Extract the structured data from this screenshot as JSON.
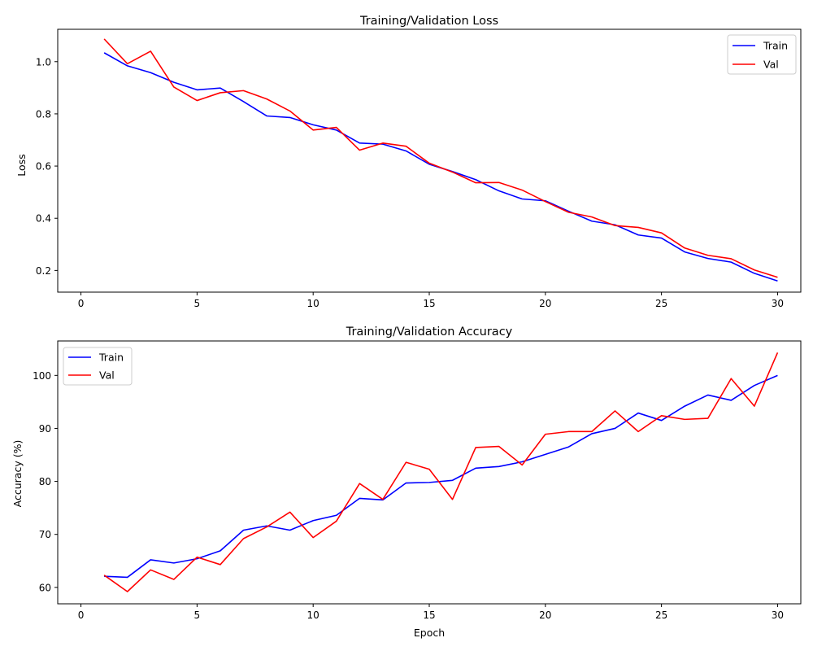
{
  "chart_data": [
    {
      "type": "line",
      "title": "Training/Validation Loss",
      "xlabel": "",
      "ylabel": "Loss",
      "xlim": [
        -1,
        31
      ],
      "ylim": [
        0.117,
        1.124
      ],
      "xticks": [
        0,
        5,
        10,
        15,
        20,
        25,
        30
      ],
      "yticks": [
        0.2,
        0.4,
        0.6,
        0.8,
        1.0
      ],
      "ytick_labels": [
        "0.2",
        "0.4",
        "0.6",
        "0.8",
        "1.0"
      ],
      "legend": "top-right",
      "grid": false,
      "x": [
        1,
        2,
        3,
        4,
        5,
        6,
        7,
        8,
        9,
        10,
        11,
        12,
        13,
        14,
        15,
        16,
        17,
        18,
        19,
        20,
        21,
        22,
        23,
        24,
        25,
        26,
        27,
        28,
        29,
        30
      ],
      "series": [
        {
          "name": "Train",
          "color": "#0000ff",
          "values": [
            1.034,
            0.984,
            0.958,
            0.921,
            0.892,
            0.899,
            0.847,
            0.792,
            0.786,
            0.758,
            0.738,
            0.688,
            0.684,
            0.658,
            0.607,
            0.579,
            0.548,
            0.505,
            0.474,
            0.467,
            0.427,
            0.389,
            0.375,
            0.336,
            0.324,
            0.271,
            0.246,
            0.232,
            0.189,
            0.16
          ]
        },
        {
          "name": "Val",
          "color": "#ff0000",
          "values": [
            1.087,
            0.992,
            1.04,
            0.903,
            0.851,
            0.881,
            0.889,
            0.857,
            0.811,
            0.738,
            0.748,
            0.661,
            0.688,
            0.676,
            0.611,
            0.577,
            0.536,
            0.537,
            0.508,
            0.464,
            0.423,
            0.405,
            0.372,
            0.365,
            0.344,
            0.286,
            0.258,
            0.245,
            0.202,
            0.174
          ]
        }
      ]
    },
    {
      "type": "line",
      "title": "Training/Validation Accuracy",
      "xlabel": "Epoch",
      "ylabel": "Accuracy (%)",
      "xlim": [
        -1,
        31
      ],
      "ylim": [
        56.9,
        106.5
      ],
      "xticks": [
        0,
        5,
        10,
        15,
        20,
        25,
        30
      ],
      "yticks": [
        60,
        70,
        80,
        90,
        100
      ],
      "ytick_labels": [
        "60",
        "70",
        "80",
        "90",
        "100"
      ],
      "legend": "top-left",
      "grid": false,
      "x": [
        1,
        2,
        3,
        4,
        5,
        6,
        7,
        8,
        9,
        10,
        11,
        12,
        13,
        14,
        15,
        16,
        17,
        18,
        19,
        20,
        21,
        22,
        23,
        24,
        25,
        26,
        27,
        28,
        29,
        30
      ],
      "series": [
        {
          "name": "Train",
          "color": "#0000ff",
          "values": [
            62.1,
            61.9,
            65.2,
            64.6,
            65.4,
            66.9,
            70.8,
            71.6,
            70.8,
            72.6,
            73.6,
            76.8,
            76.5,
            79.7,
            79.8,
            80.2,
            82.5,
            82.8,
            83.7,
            85.1,
            86.5,
            89.0,
            90.0,
            92.9,
            91.5,
            94.2,
            96.3,
            95.3,
            98.1,
            100.0
          ]
        },
        {
          "name": "Val",
          "color": "#ff0000",
          "values": [
            62.3,
            59.2,
            63.3,
            61.5,
            65.7,
            64.3,
            69.2,
            71.4,
            74.2,
            69.4,
            72.5,
            79.6,
            76.6,
            83.6,
            82.3,
            76.6,
            86.4,
            86.6,
            83.1,
            88.9,
            89.4,
            89.4,
            93.3,
            89.4,
            92.4,
            91.7,
            91.9,
            99.4,
            94.2,
            104.3
          ]
        }
      ]
    }
  ]
}
